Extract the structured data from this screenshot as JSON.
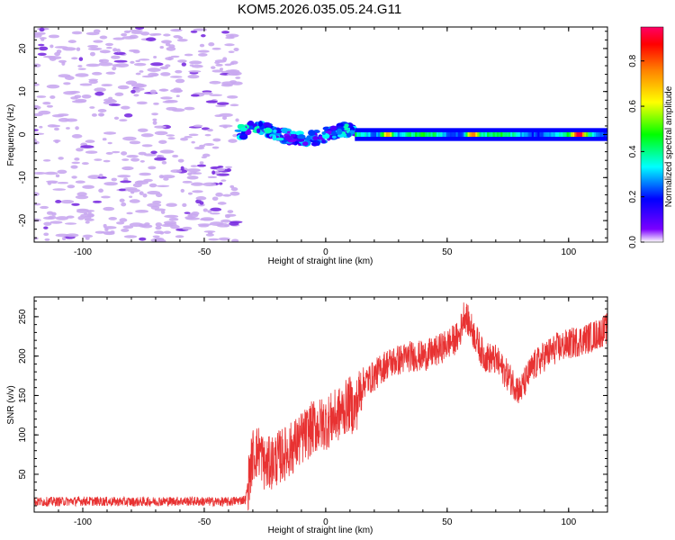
{
  "title": "KOM5.2026.035.05.24.G11",
  "colors": {
    "snr_line": "#e83232",
    "noise_dots": "#c9a8f0",
    "noise_dark": "#7a2de0"
  },
  "chart_data": [
    {
      "type": "heatmap",
      "title": "KOM5.2026.035.05.24.G11",
      "xlabel": "Height of straight line (km)",
      "ylabel": "Frequency (Hz)",
      "xlim": [
        -120,
        116
      ],
      "ylim": [
        -25,
        25
      ],
      "x_ticks": [
        -100,
        -50,
        0,
        50,
        100
      ],
      "y_ticks": [
        -20,
        -10,
        0,
        10,
        20
      ],
      "colorbar": {
        "label": "Normalized spectral amplitude",
        "range": [
          0,
          0.95
        ],
        "ticks": [
          0.0,
          0.2,
          0.4,
          0.6,
          0.8
        ],
        "colormap": "rainbow (violet to red)"
      },
      "grid": false,
      "description_bands": [
        {
          "x_range": [
            -120,
            -36
          ],
          "content": "scattered low-amplitude noise over full frequency range"
        },
        {
          "x_range": [
            -36,
            12
          ],
          "content": "signal near 0 Hz, wavering, amplitude 0.2-0.5"
        },
        {
          "x_range": [
            12,
            116
          ],
          "content": "steady signal at 0 Hz, amplitude 0.3-0.95, peaks near 25, 60, 104 km"
        }
      ]
    },
    {
      "type": "line",
      "xlabel": "Height of straight line (km)",
      "ylabel": "SNR (v/v)",
      "xlim": [
        -120,
        116
      ],
      "ylim": [
        2,
        275
      ],
      "x_ticks": [
        -100,
        -50,
        0,
        50,
        100
      ],
      "y_ticks": [
        50,
        100,
        150,
        200,
        250
      ],
      "grid": false,
      "series": [
        {
          "x": [
            -120,
            -100,
            -80,
            -60,
            -40,
            -33,
            -30,
            -27,
            -25,
            -20,
            -15,
            -10,
            -5,
            0,
            5,
            10,
            12,
            15,
            20,
            25,
            30,
            35,
            40,
            45,
            50,
            55,
            57,
            60,
            65,
            70,
            75,
            80,
            85,
            90,
            95,
            100,
            105,
            110,
            116
          ],
          "values": [
            15,
            16,
            15,
            16,
            15,
            18,
            75,
            80,
            60,
            70,
            80,
            95,
            110,
            115,
            125,
            140,
            130,
            165,
            175,
            190,
            195,
            200,
            200,
            205,
            215,
            225,
            255,
            235,
            200,
            195,
            175,
            155,
            185,
            200,
            210,
            215,
            220,
            225,
            235
          ]
        }
      ]
    }
  ]
}
